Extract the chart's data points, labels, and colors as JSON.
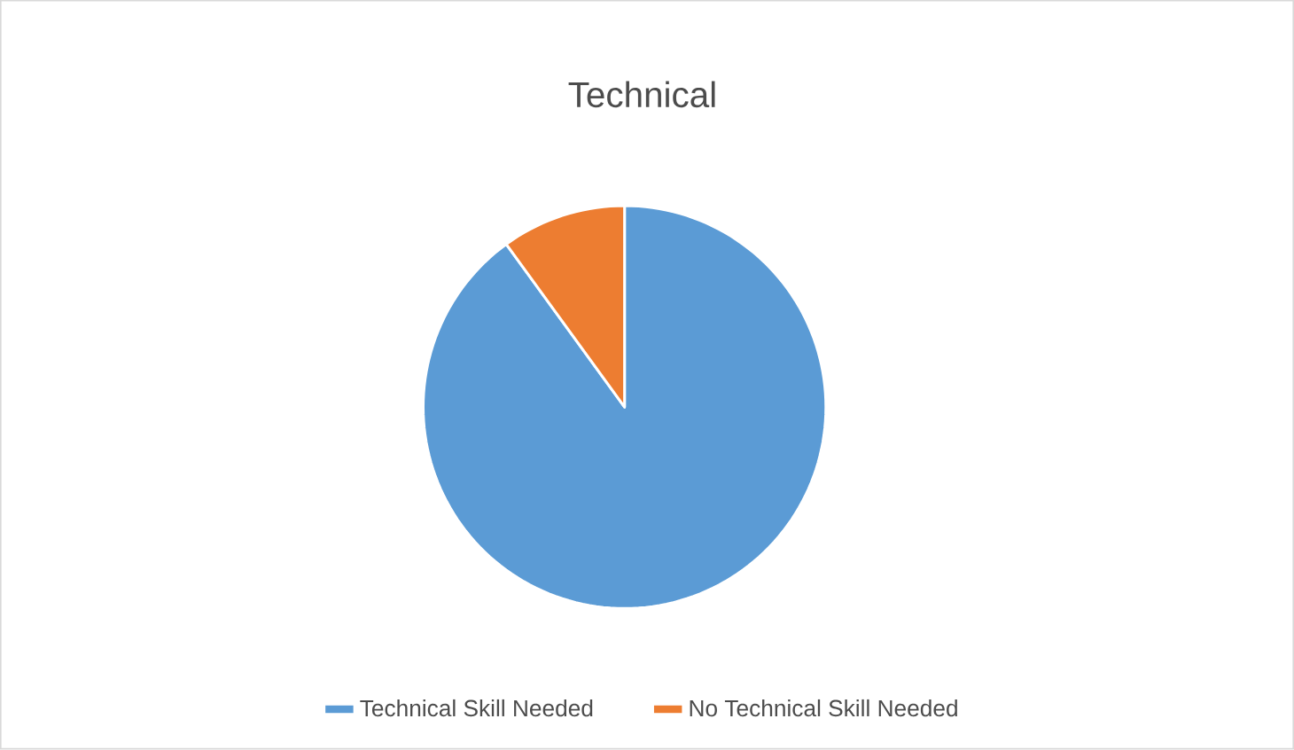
{
  "chart_data": {
    "type": "pie",
    "title": "Technical",
    "categories": [
      "Technical Skill Needed",
      "No Technical Skill Needed"
    ],
    "values": [
      90,
      10
    ],
    "colors": [
      "#5b9bd5",
      "#ed7d31"
    ],
    "legend": "bottom"
  }
}
